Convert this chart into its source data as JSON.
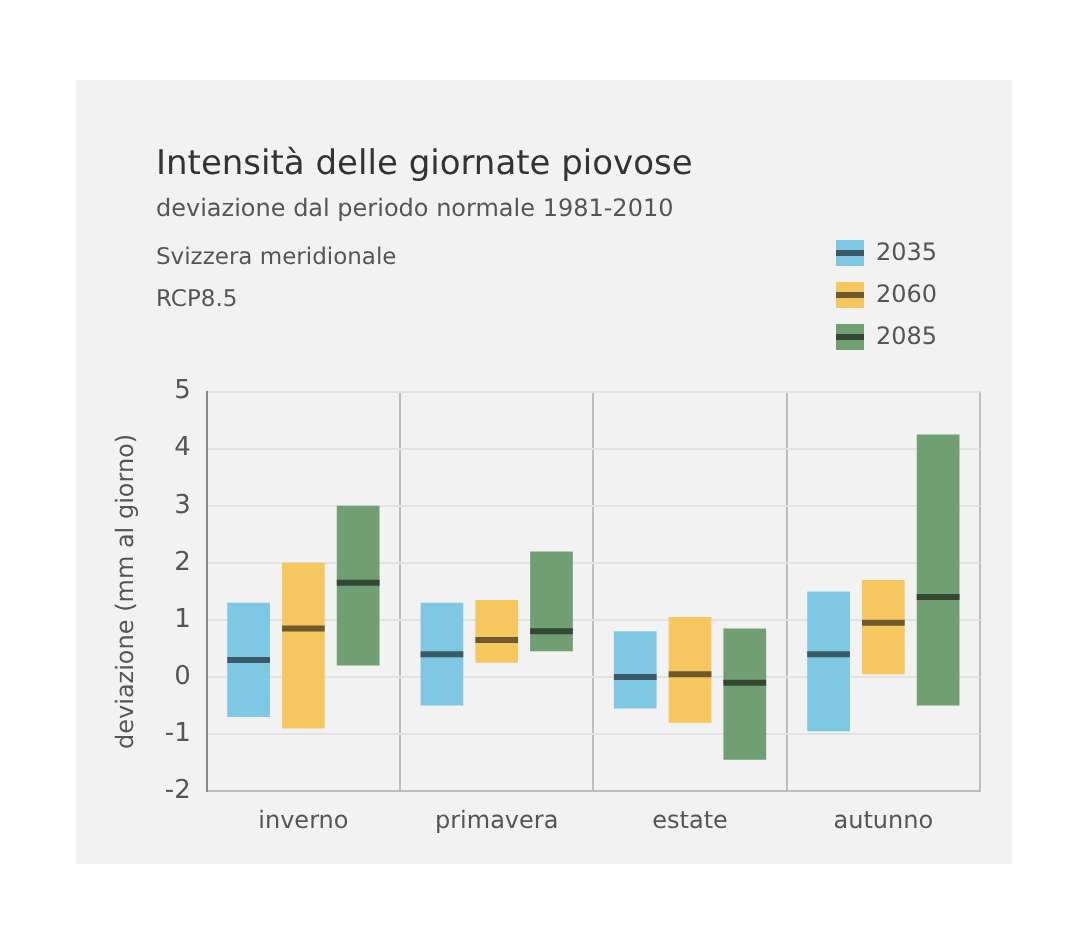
{
  "chart_data": {
    "type": "box",
    "title": "Intensità delle giornate piovose",
    "subtitle": "deviazione dal periodo normale 1981-2010",
    "annotations": [
      "Svizzera meridionale",
      "RCP8.5"
    ],
    "ylabel": "deviazione (mm al giorno)",
    "categories": [
      "inverno",
      "primavera",
      "estate",
      "autunno"
    ],
    "series": [
      {
        "name": "2035",
        "color": "#7ec8e3",
        "boxes": [
          {
            "low": -0.7,
            "q1": -0.7,
            "median": 0.3,
            "q3": 1.3,
            "high": 1.3
          },
          {
            "low": -0.5,
            "q1": -0.5,
            "median": 0.4,
            "q3": 1.3,
            "high": 1.3
          },
          {
            "low": -0.55,
            "q1": -0.55,
            "median": 0,
            "q3": 0.8,
            "high": 0.8
          },
          {
            "low": -0.95,
            "q1": -0.95,
            "median": 0.4,
            "q3": 1.5,
            "high": 1.5
          }
        ]
      },
      {
        "name": "2060",
        "color": "#f6c75e",
        "boxes": [
          {
            "low": -0.9,
            "q1": -0.9,
            "median": 0.85,
            "q3": 2,
            "high": 2
          },
          {
            "low": 0.25,
            "q1": 0.25,
            "median": 0.65,
            "q3": 1.35,
            "high": 1.35
          },
          {
            "low": -0.8,
            "q1": -0.8,
            "median": 0.05,
            "q3": 1.05,
            "high": 1.05
          },
          {
            "low": 0.05,
            "q1": 0.05,
            "median": 0.95,
            "q3": 1.7,
            "high": 1.7
          }
        ]
      },
      {
        "name": "2085",
        "color": "#6f9f72",
        "boxes": [
          {
            "low": 0.2,
            "q1": 0.2,
            "median": 1.65,
            "q3": 3,
            "high": 3
          },
          {
            "low": 0.45,
            "q1": 0.45,
            "median": 0.8,
            "q3": 2.2,
            "high": 2.2
          },
          {
            "low": -1.45,
            "q1": -1.45,
            "median": -0.1,
            "q3": 0.85,
            "high": 0.85
          },
          {
            "low": -0.5,
            "q1": -0.5,
            "median": 1.4,
            "q3": 4.25,
            "high": 4.25
          }
        ]
      }
    ],
    "ylim": [
      -2,
      5
    ],
    "yticks": [
      -2,
      -1,
      0,
      1,
      2,
      3,
      4,
      5
    ],
    "grid": true,
    "legend": "top right"
  }
}
